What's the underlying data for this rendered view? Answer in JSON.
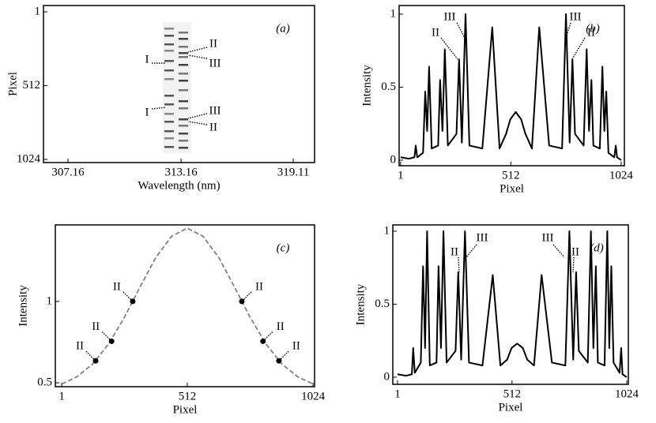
{
  "chart_data": [
    {
      "type": "image",
      "label": "(a)",
      "xlabel": "Wavelength (nm)",
      "ylabel": "Pixel",
      "xlim": [
        305.86,
        320.24
      ],
      "xticks": [
        307.16,
        313.16,
        319.11
      ],
      "ylim": [
        1046,
        -43
      ],
      "yticks": [
        1,
        512,
        1024
      ],
      "annotations": [
        "I",
        "I",
        "II",
        "III",
        "III",
        "II"
      ]
    },
    {
      "type": "line",
      "label": "(b)",
      "xlabel": "Pixel",
      "ylabel": "Intensity",
      "xlim": [
        -6,
        1039
      ],
      "xticks": [
        1,
        512,
        1024
      ],
      "ylim": [
        -0.038,
        1.059
      ],
      "yticks": [
        0,
        0.5,
        1
      ],
      "x": [
        1,
        40,
        65,
        71,
        78,
        105,
        115,
        124,
        133,
        145,
        175,
        184,
        195,
        206,
        220,
        260,
        272,
        285,
        302,
        320,
        380,
        426,
        460,
        490,
        510,
        535,
        560,
        580,
        610,
        644,
        690,
        750,
        768,
        785,
        798,
        810,
        850,
        864,
        875,
        886,
        895,
        925,
        937,
        946,
        955,
        965,
        992,
        999,
        1005,
        1024
      ],
      "series": [
        {
          "color": "#000000",
          "values": [
            0.02,
            0.01,
            0.02,
            0.1,
            0.02,
            0.05,
            0.47,
            0.2,
            0.64,
            0.08,
            0.1,
            0.55,
            0.2,
            0.76,
            0.1,
            0.18,
            0.69,
            0.12,
            1.0,
            0.1,
            0.08,
            0.91,
            0.08,
            0.18,
            0.28,
            0.33,
            0.28,
            0.18,
            0.08,
            0.91,
            0.1,
            0.08,
            1.0,
            0.12,
            0.69,
            0.18,
            0.1,
            0.76,
            0.2,
            0.55,
            0.1,
            0.08,
            0.64,
            0.2,
            0.47,
            0.05,
            0.02,
            0.1,
            0.02,
            0.0
          ]
        }
      ],
      "annotations": [
        "II",
        "III",
        "III",
        "II"
      ]
    },
    {
      "type": "line",
      "label": "(c)",
      "xlabel": "Pixel",
      "ylabel": "Intensity",
      "xlim": [
        -25,
        1030
      ],
      "xticks": [
        1,
        512,
        1024
      ],
      "ylim": [
        0.476,
        1.47
      ],
      "yticks": [
        0.5,
        1
      ],
      "dashed": true,
      "x": [
        1,
        64,
        128,
        192,
        256,
        320,
        384,
        448,
        512,
        576,
        640,
        704,
        768,
        832,
        896,
        960,
        1024
      ],
      "series": [
        {
          "color": "#808080",
          "values": [
            0.492,
            0.538,
            0.617,
            0.739,
            0.902,
            1.089,
            1.27,
            1.4,
            1.45,
            1.4,
            1.27,
            1.089,
            0.902,
            0.739,
            0.617,
            0.538,
            0.492
          ]
        }
      ],
      "points": {
        "color": "#000000",
        "x": [
          139,
          204,
          290,
          734,
          820,
          885
        ],
        "values": [
          0.635,
          0.755,
          1.0,
          1.0,
          0.755,
          0.635
        ],
        "labels": [
          "II",
          "II",
          "II",
          "II",
          "II",
          "II"
        ]
      }
    },
    {
      "type": "line",
      "label": "(d)",
      "xlabel": "Pixel",
      "ylabel": "Intensity",
      "xlim": [
        -20,
        1031
      ],
      "xticks": [
        1,
        512,
        1024
      ],
      "ylim": [
        -0.049,
        1.043
      ],
      "yticks": [
        0,
        0.5,
        1
      ],
      "x": [
        1,
        40,
        65,
        71,
        78,
        105,
        115,
        124,
        133,
        145,
        175,
        184,
        195,
        206,
        220,
        260,
        272,
        285,
        302,
        320,
        380,
        426,
        460,
        490,
        510,
        535,
        560,
        580,
        610,
        644,
        690,
        750,
        768,
        785,
        798,
        810,
        850,
        864,
        875,
        886,
        895,
        925,
        937,
        946,
        955,
        965,
        992,
        999,
        1005,
        1024
      ],
      "series": [
        {
          "color": "#000000",
          "values": [
            0.02,
            0.01,
            0.02,
            0.2,
            0.03,
            0.1,
            0.76,
            0.2,
            1.0,
            0.08,
            0.1,
            0.76,
            0.2,
            1.0,
            0.1,
            0.18,
            0.72,
            0.12,
            1.0,
            0.1,
            0.08,
            0.7,
            0.08,
            0.12,
            0.2,
            0.23,
            0.2,
            0.12,
            0.08,
            0.7,
            0.1,
            0.08,
            1.0,
            0.12,
            0.72,
            0.18,
            0.1,
            1.0,
            0.2,
            0.76,
            0.1,
            0.08,
            1.0,
            0.2,
            0.76,
            0.1,
            0.03,
            0.2,
            0.02,
            0.0
          ]
        }
      ],
      "annotations": [
        "II",
        "III",
        "III",
        "II"
      ]
    }
  ]
}
